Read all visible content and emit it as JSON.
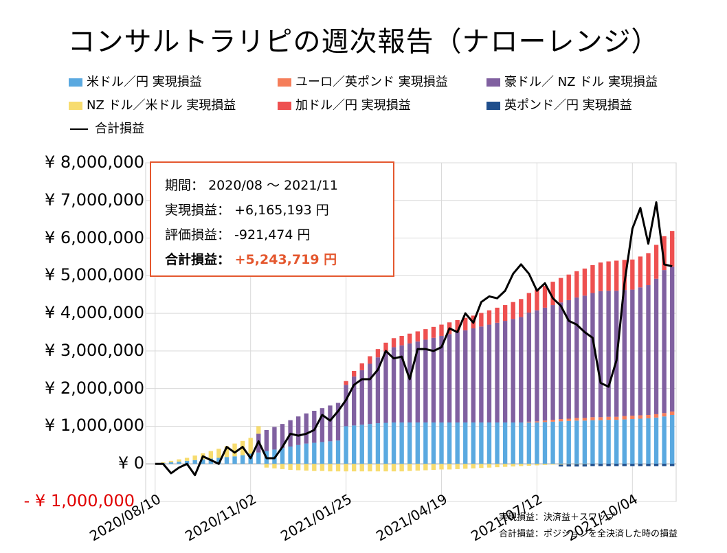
{
  "title": "コンサルトラリピの週次報告（ナローレンジ）",
  "colors": {
    "usdjpy": "#5aa9e0",
    "eurgbp": "#f57e5a",
    "audnzd": "#8060a0",
    "nzdusd": "#f7dc6f",
    "cadjpy": "#ee5050",
    "gbpjpy": "#1f4e8c",
    "total": "#000000",
    "infobox_border": "#e4572e",
    "highlight": "#e4572e",
    "negative_tick": "#e00000"
  },
  "legend": [
    {
      "label": "米ドル／円 実現損益",
      "key": "usdjpy"
    },
    {
      "label": "ユーロ／英ポンド 実現損益",
      "key": "eurgbp"
    },
    {
      "label": "豪ドル／ NZ ドル 実現損益",
      "key": "audnzd"
    },
    {
      "label": "NZ ドル／米ドル 実現損益",
      "key": "nzdusd"
    },
    {
      "label": "加ドル／円 実現損益",
      "key": "cadjpy"
    },
    {
      "label": "英ポンド／円 実現損益",
      "key": "gbpjpy"
    },
    {
      "label": "合計損益",
      "key": "total"
    }
  ],
  "infobox": {
    "period_label": "期間：",
    "period_value": "2020/08 〜 2021/11",
    "realized_label": "実現損益：",
    "realized_value": "+6,165,193 円",
    "unrealized_label": "評価損益：",
    "unrealized_value": "-921,474 円",
    "total_label": "合計損益：",
    "total_value": "+5,243,719 円"
  },
  "notes": [
    "実現損益：決済益＋スワップ",
    "合計損益：ポジションを全決済した時の損益"
  ],
  "chart_data": {
    "type": "bar",
    "stacked": true,
    "ylim": [
      -1000000,
      8000000
    ],
    "yticks": [
      {
        "value": 8000000,
        "label": "¥ 8,000,000"
      },
      {
        "value": 7000000,
        "label": "¥ 7,000,000"
      },
      {
        "value": 6000000,
        "label": "¥ 6,000,000"
      },
      {
        "value": 5000000,
        "label": "¥ 5,000,000"
      },
      {
        "value": 4000000,
        "label": "¥ 4,000,000"
      },
      {
        "value": 3000000,
        "label": "¥ 3,000,000"
      },
      {
        "value": 2000000,
        "label": "¥ 2,000,000"
      },
      {
        "value": 1000000,
        "label": "¥ 1,000,000"
      },
      {
        "value": 0,
        "label": "¥ 0"
      },
      {
        "value": -1000000,
        "label": "- ¥ 1,000,000"
      }
    ],
    "xticks": [
      {
        "index": 0,
        "label": "2020/08/10"
      },
      {
        "index": 12,
        "label": "2020/11/02"
      },
      {
        "index": 24,
        "label": "2021/01/25"
      },
      {
        "index": 36,
        "label": "2021/04/19"
      },
      {
        "index": 48,
        "label": "2021/07/12"
      },
      {
        "index": 60,
        "label": "2021/10/04"
      }
    ],
    "weeks": 66,
    "grid": true,
    "legend_position": "top",
    "series": [
      {
        "key": "usdjpy",
        "values": [
          0,
          20000,
          40000,
          60000,
          80000,
          100000,
          120000,
          140000,
          160000,
          180000,
          200000,
          230000,
          270000,
          300000,
          340000,
          380000,
          420000,
          460000,
          500000,
          540000,
          560000,
          580000,
          600000,
          620000,
          1000000,
          1020000,
          1040000,
          1060000,
          1080000,
          1090000,
          1100000,
          1100000,
          1100000,
          1100000,
          1100000,
          1100000,
          1100000,
          1100000,
          1100000,
          1100000,
          1100000,
          1100000,
          1100000,
          1100000,
          1100000,
          1100000,
          1100000,
          1100000,
          1100000,
          1110000,
          1120000,
          1130000,
          1140000,
          1150000,
          1150000,
          1160000,
          1160000,
          1170000,
          1170000,
          1180000,
          1190000,
          1200000,
          1210000,
          1230000,
          1260000,
          1300000
        ]
      },
      {
        "key": "eurgbp",
        "values": [
          0,
          0,
          0,
          0,
          0,
          0,
          0,
          0,
          0,
          0,
          0,
          0,
          0,
          0,
          0,
          0,
          0,
          0,
          0,
          0,
          0,
          0,
          0,
          0,
          0,
          0,
          0,
          0,
          0,
          0,
          0,
          0,
          0,
          0,
          0,
          0,
          0,
          0,
          0,
          0,
          0,
          0,
          0,
          0,
          0,
          0,
          0,
          20000,
          30000,
          40000,
          50000,
          60000,
          60000,
          70000,
          70000,
          80000,
          80000,
          80000,
          80000,
          90000,
          90000,
          90000,
          90000,
          90000,
          90000,
          90000
        ]
      },
      {
        "key": "audnzd",
        "values": [
          0,
          0,
          0,
          0,
          0,
          0,
          0,
          0,
          0,
          0,
          0,
          0,
          0,
          500000,
          560000,
          600000,
          640000,
          700000,
          760000,
          800000,
          850000,
          900000,
          950000,
          1000000,
          1100000,
          1300000,
          1450000,
          1600000,
          1750000,
          1900000,
          2000000,
          2050000,
          2100000,
          2150000,
          2200000,
          2250000,
          2300000,
          2350000,
          2400000,
          2450000,
          2500000,
          2550000,
          2600000,
          2650000,
          2700000,
          2750000,
          2800000,
          2900000,
          2950000,
          3000000,
          3050000,
          3100000,
          3150000,
          3200000,
          3250000,
          3300000,
          3350000,
          3350000,
          3350000,
          3350000,
          3350000,
          3400000,
          3450000,
          3600000,
          3800000,
          3850000
        ]
      },
      {
        "key": "nzdusd",
        "values": [
          0,
          20000,
          40000,
          60000,
          80000,
          120000,
          160000,
          200000,
          240000,
          290000,
          340000,
          380000,
          420000,
          200000,
          -100000,
          -120000,
          -140000,
          -160000,
          -170000,
          -180000,
          -190000,
          -190000,
          -200000,
          -200000,
          -200000,
          -200000,
          -200000,
          -200000,
          -200000,
          -200000,
          -200000,
          -200000,
          -190000,
          -180000,
          -170000,
          -160000,
          -150000,
          -150000,
          -140000,
          -130000,
          -120000,
          -110000,
          -100000,
          -90000,
          -80000,
          -70000,
          -60000,
          -50000,
          -40000,
          -30000,
          -20000,
          -20000,
          -10000,
          -10000,
          -10000,
          0,
          0,
          0,
          0,
          0,
          0,
          0,
          0,
          0,
          0,
          0
        ]
      },
      {
        "key": "cadjpy",
        "values": [
          0,
          0,
          0,
          0,
          0,
          0,
          0,
          0,
          0,
          0,
          0,
          0,
          0,
          0,
          0,
          0,
          0,
          0,
          0,
          0,
          0,
          0,
          0,
          0,
          100000,
          150000,
          180000,
          200000,
          220000,
          230000,
          240000,
          250000,
          260000,
          270000,
          280000,
          290000,
          300000,
          310000,
          320000,
          330000,
          340000,
          360000,
          380000,
          400000,
          420000,
          450000,
          480000,
          520000,
          550000,
          580000,
          620000,
          650000,
          680000,
          700000,
          720000,
          740000,
          760000,
          780000,
          800000,
          800000,
          800000,
          820000,
          850000,
          900000,
          900000,
          950000
        ]
      },
      {
        "key": "gbpjpy",
        "values": [
          0,
          0,
          0,
          0,
          0,
          0,
          0,
          0,
          0,
          0,
          0,
          0,
          0,
          0,
          0,
          0,
          0,
          0,
          0,
          0,
          0,
          0,
          0,
          0,
          0,
          0,
          0,
          0,
          0,
          0,
          0,
          0,
          0,
          0,
          0,
          0,
          0,
          0,
          0,
          0,
          0,
          0,
          0,
          0,
          0,
          0,
          0,
          0,
          0,
          0,
          0,
          -50000,
          -60000,
          -60000,
          -60000,
          -60000,
          -60000,
          -60000,
          -60000,
          -60000,
          -60000,
          -60000,
          -60000,
          -60000,
          -60000,
          -60000
        ]
      },
      {
        "key": "total",
        "type": "line",
        "values": [
          0,
          0,
          -250000,
          -100000,
          0,
          -300000,
          200000,
          100000,
          0,
          450000,
          300000,
          450000,
          150000,
          600000,
          150000,
          150000,
          450000,
          800000,
          750000,
          800000,
          900000,
          1300000,
          1150000,
          1400000,
          1700000,
          2100000,
          2250000,
          2250000,
          2500000,
          3000000,
          2800000,
          2850000,
          2250000,
          3050000,
          3050000,
          3000000,
          3100000,
          3600000,
          3500000,
          4000000,
          3750000,
          4300000,
          4450000,
          4400000,
          4600000,
          5050000,
          5300000,
          5050000,
          4600000,
          4800000,
          4400000,
          4200000,
          3800000,
          3700000,
          3500000,
          3350000,
          2150000,
          2050000,
          2750000,
          4800000,
          6250000,
          6800000,
          5850000,
          6950000,
          5300000,
          5250000
        ]
      }
    ]
  }
}
